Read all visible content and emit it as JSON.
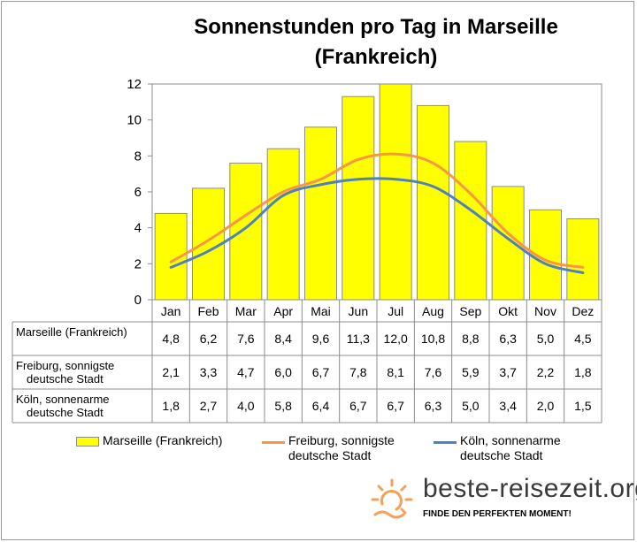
{
  "chart_data": {
    "type": "bar",
    "title": "Sonnenstunden pro Tag in Marseille (Frankreich)",
    "categories": [
      "Jan",
      "Feb",
      "Mar",
      "Apr",
      "Mai",
      "Jun",
      "Jul",
      "Aug",
      "Sep",
      "Okt",
      "Nov",
      "Dez"
    ],
    "ylim": [
      0,
      12
    ],
    "yticks": [
      0,
      2,
      4,
      6,
      8,
      10,
      12
    ],
    "grid": false,
    "legend_position": "bottom",
    "series": [
      {
        "name": "Marseille (Frankreich)",
        "kind": "bar",
        "color": "#ffff00",
        "table_label": "Marseille (Frankreich)",
        "legend_label": "Marseille (Frankreich)",
        "values": [
          4.8,
          6.2,
          7.6,
          8.4,
          9.6,
          11.3,
          12.0,
          10.8,
          8.8,
          6.3,
          5.0,
          4.5
        ],
        "display": [
          "4,8",
          "6,2",
          "7,6",
          "8,4",
          "9,6",
          "11,3",
          "12,0",
          "10,8",
          "8,8",
          "6,3",
          "5,0",
          "4,5"
        ]
      },
      {
        "name": "Freiburg, sonnigste deutsche Stadt",
        "kind": "line",
        "color": "#f79646",
        "table_label": "Freiburg, sonnigste\ndeutsche Stadt",
        "legend_label": "Freiburg, sonnigste\ndeutsche Stadt",
        "values": [
          2.1,
          3.3,
          4.7,
          6.0,
          6.7,
          7.8,
          8.1,
          7.6,
          5.9,
          3.7,
          2.2,
          1.8
        ],
        "display": [
          "2,1",
          "3,3",
          "4,7",
          "6,0",
          "6,7",
          "7,8",
          "8,1",
          "7,6",
          "5,9",
          "3,7",
          "2,2",
          "1,8"
        ]
      },
      {
        "name": "Köln, sonnenarme deutsche Stadt",
        "kind": "line",
        "color": "#4f81bd",
        "table_label": "Köln, sonnenarme\ndeutsche Stadt",
        "legend_label": "Köln, sonnenarme\ndeutsche Stadt",
        "values": [
          1.8,
          2.7,
          4.0,
          5.8,
          6.4,
          6.7,
          6.7,
          6.3,
          5.0,
          3.4,
          2.0,
          1.5
        ],
        "display": [
          "1,8",
          "2,7",
          "4,0",
          "5,8",
          "6,4",
          "6,7",
          "6,7",
          "6,3",
          "5,0",
          "3,4",
          "2,0",
          "1,5"
        ]
      }
    ]
  },
  "header": {
    "title": "Sonnenstunden pro Tag in Marseille\n(Frankreich)"
  },
  "legend": {
    "bar_label": "Marseille (Frankreich)",
    "line1_label": "Freiburg, sonnigste\ndeutsche Stadt",
    "line2_label": "Köln, sonnenarme\ndeutsche Stadt"
  },
  "brand": {
    "name": "beste-reisezeit.org",
    "tagline": "FINDE DEN PERFEKTEN MOMENT!",
    "sun_color": "#f5a05a"
  }
}
